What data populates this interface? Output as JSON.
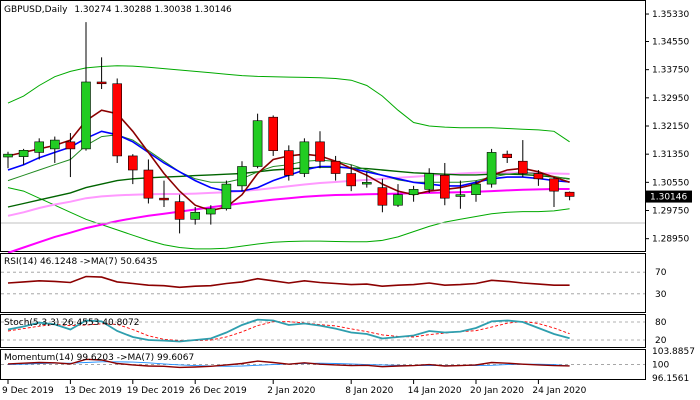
{
  "header": {
    "title": "GBPUSD,Daily",
    "ohlc": "1.30274 1.30288 1.30038 1.30146"
  },
  "price_axis": {
    "ticks": [
      "1.35330",
      "1.34550",
      "1.33750",
      "1.32950",
      "1.32150",
      "1.31350",
      "1.30550",
      "1.29750",
      "1.28950"
    ],
    "current_price": "1.30146"
  },
  "x_axis": {
    "labels": [
      "9 Dec 2019",
      "13 Dec 2019",
      "19 Dec 2019",
      "26 Dec 2019",
      "2 Jan 2020",
      "8 Jan 2020",
      "14 Jan 2020",
      "20 Jan 2020",
      "24 Jan 2020"
    ]
  },
  "indicators": {
    "rsi": {
      "label": "RSI(14) 46.1248 ->MA(7) 50.6435",
      "ticks": [
        "70",
        "30"
      ]
    },
    "stoch": {
      "label": "Stoch(5,3,3) 26.4553 40.8072",
      "ticks": [
        "80",
        "20"
      ]
    },
    "momentum": {
      "label": "Momentum(14) 99.6203 ->MA(7) 99.6067",
      "ticks": [
        "103.8857",
        "100",
        "96.1561"
      ]
    }
  },
  "colors": {
    "bull": "#22cc22",
    "bear": "#ff0000",
    "ma_fast": "#0000ff",
    "ma_dark_red": "#8b0000",
    "ma_green": "#006400",
    "ma_magenta": "#ff00ff",
    "ma_pink": "#ff99ff",
    "bollinger": "#00aa00",
    "rsi_line": "#8b0000",
    "stoch_line": "#2e9eae",
    "momentum_line": "#8b0000"
  },
  "chart_data": {
    "type": "candlestick",
    "symbol": "GBPUSD",
    "timeframe": "Daily",
    "ylim": [
      1.286,
      1.357
    ],
    "candles": [
      {
        "o": 1.3127,
        "h": 1.3142,
        "l": 1.3095,
        "c": 1.3135
      },
      {
        "o": 1.3128,
        "h": 1.315,
        "l": 1.3105,
        "c": 1.3146
      },
      {
        "o": 1.314,
        "h": 1.318,
        "l": 1.312,
        "c": 1.317
      },
      {
        "o": 1.315,
        "h": 1.3185,
        "l": 1.311,
        "c": 1.3175
      },
      {
        "o": 1.317,
        "h": 1.3195,
        "l": 1.307,
        "c": 1.315
      },
      {
        "o": 1.315,
        "h": 1.351,
        "l": 1.3145,
        "c": 1.334
      },
      {
        "o": 1.334,
        "h": 1.341,
        "l": 1.332,
        "c": 1.3335
      },
      {
        "o": 1.3335,
        "h": 1.335,
        "l": 1.311,
        "c": 1.313
      },
      {
        "o": 1.313,
        "h": 1.3135,
        "l": 1.305,
        "c": 1.309
      },
      {
        "o": 1.309,
        "h": 1.312,
        "l": 1.2995,
        "c": 1.301
      },
      {
        "o": 1.301,
        "h": 1.306,
        "l": 1.2985,
        "c": 1.3005
      },
      {
        "o": 1.3,
        "h": 1.302,
        "l": 1.291,
        "c": 1.295
      },
      {
        "o": 1.295,
        "h": 1.2985,
        "l": 1.2935,
        "c": 1.297
      },
      {
        "o": 1.2965,
        "h": 1.299,
        "l": 1.2935,
        "c": 1.298
      },
      {
        "o": 1.298,
        "h": 1.306,
        "l": 1.2975,
        "c": 1.305
      },
      {
        "o": 1.3045,
        "h": 1.3115,
        "l": 1.303,
        "c": 1.31
      },
      {
        "o": 1.31,
        "h": 1.325,
        "l": 1.3095,
        "c": 1.323
      },
      {
        "o": 1.324,
        "h": 1.3245,
        "l": 1.313,
        "c": 1.3145
      },
      {
        "o": 1.3145,
        "h": 1.316,
        "l": 1.306,
        "c": 1.3075
      },
      {
        "o": 1.308,
        "h": 1.318,
        "l": 1.307,
        "c": 1.317
      },
      {
        "o": 1.317,
        "h": 1.32,
        "l": 1.3095,
        "c": 1.3115
      },
      {
        "o": 1.3115,
        "h": 1.313,
        "l": 1.306,
        "c": 1.308
      },
      {
        "o": 1.308,
        "h": 1.3105,
        "l": 1.303,
        "c": 1.3045
      },
      {
        "o": 1.305,
        "h": 1.3085,
        "l": 1.304,
        "c": 1.3055
      },
      {
        "o": 1.304,
        "h": 1.3065,
        "l": 1.297,
        "c": 1.299
      },
      {
        "o": 1.299,
        "h": 1.305,
        "l": 1.2985,
        "c": 1.302
      },
      {
        "o": 1.302,
        "h": 1.3045,
        "l": 1.3,
        "c": 1.3035
      },
      {
        "o": 1.3035,
        "h": 1.3095,
        "l": 1.3025,
        "c": 1.308
      },
      {
        "o": 1.3075,
        "h": 1.311,
        "l": 1.299,
        "c": 1.301
      },
      {
        "o": 1.3015,
        "h": 1.306,
        "l": 1.298,
        "c": 1.302
      },
      {
        "o": 1.302,
        "h": 1.306,
        "l": 1.3,
        "c": 1.305
      },
      {
        "o": 1.305,
        "h": 1.315,
        "l": 1.304,
        "c": 1.314
      },
      {
        "o": 1.3135,
        "h": 1.3145,
        "l": 1.311,
        "c": 1.3125
      },
      {
        "o": 1.3115,
        "h": 1.3175,
        "l": 1.307,
        "c": 1.308
      },
      {
        "o": 1.308,
        "h": 1.309,
        "l": 1.3045,
        "c": 1.3065
      },
      {
        "o": 1.3065,
        "h": 1.307,
        "l": 1.2985,
        "c": 1.303
      },
      {
        "o": 1.3027,
        "h": 1.3029,
        "l": 1.3004,
        "c": 1.3015
      }
    ],
    "overlays": {
      "ma_fast": [
        1.309,
        1.3105,
        1.3125,
        1.314,
        1.3155,
        1.318,
        1.32,
        1.319,
        1.317,
        1.314,
        1.311,
        1.3085,
        1.306,
        1.304,
        1.303,
        1.303,
        1.304,
        1.306,
        1.3075,
        1.309,
        1.31,
        1.31,
        1.3095,
        1.3085,
        1.3075,
        1.3065,
        1.3055,
        1.305,
        1.3045,
        1.3045,
        1.3055,
        1.3065,
        1.307,
        1.307,
        1.3066,
        1.306,
        1.3056
      ],
      "ma_dark_red": [
        1.313,
        1.314,
        1.315,
        1.316,
        1.3175,
        1.323,
        1.326,
        1.325,
        1.32,
        1.314,
        1.308,
        1.303,
        1.299,
        1.2975,
        1.2985,
        1.302,
        1.308,
        1.312,
        1.313,
        1.3135,
        1.313,
        1.3115,
        1.3095,
        1.3075,
        1.305,
        1.303,
        1.302,
        1.303,
        1.3035,
        1.304,
        1.305,
        1.3075,
        1.309,
        1.3095,
        1.3085,
        1.307,
        1.3055
      ],
      "ma_green": [
        1.306,
        1.3075,
        1.309,
        1.3105,
        1.312,
        1.316,
        1.3185,
        1.319,
        1.3175,
        1.3145,
        1.3115,
        1.3085,
        1.3065,
        1.3055,
        1.3055,
        1.3065,
        1.3085,
        1.31,
        1.3105,
        1.3115,
        1.3118,
        1.3115,
        1.3105,
        1.309,
        1.3075,
        1.3062,
        1.3055,
        1.3055,
        1.3055,
        1.3055,
        1.306,
        1.307,
        1.3078,
        1.3082,
        1.308,
        1.3072,
        1.3064
      ],
      "ma_long_green": [
        1.2985,
        1.2995,
        1.3005,
        1.3015,
        1.3025,
        1.304,
        1.305,
        1.306,
        1.3065,
        1.3068,
        1.307,
        1.3072,
        1.3074,
        1.3076,
        1.3078,
        1.308,
        1.3085,
        1.309,
        1.3093,
        1.3096,
        1.3098,
        1.3098,
        1.3096,
        1.3094,
        1.309,
        1.3086,
        1.3082,
        1.308,
        1.3078,
        1.3076,
        1.3076,
        1.3078,
        1.3078,
        1.3077,
        1.3074,
        1.307,
        1.3065
      ],
      "ma_magenta": [
        1.2855,
        1.287,
        1.2885,
        1.29,
        1.2912,
        1.2925,
        1.2935,
        1.2945,
        1.2953,
        1.296,
        1.2966,
        1.2972,
        1.2978,
        1.2984,
        1.299,
        1.2996,
        1.3001,
        1.3006,
        1.301,
        1.3014,
        1.3017,
        1.3019,
        1.302,
        1.3021,
        1.3022,
        1.3023,
        1.3024,
        1.3025,
        1.3026,
        1.3027,
        1.3028,
        1.303,
        1.3032,
        1.3034,
        1.3035,
        1.3036,
        1.3036
      ],
      "ma_pink": [
        1.296,
        1.297,
        1.2982,
        1.2992,
        1.3,
        1.301,
        1.3015,
        1.3018,
        1.302,
        1.3021,
        1.3022,
        1.3022,
        1.3023,
        1.3025,
        1.3027,
        1.303,
        1.3034,
        1.3039,
        1.3044,
        1.3049,
        1.3053,
        1.3056,
        1.3059,
        1.3062,
        1.3065,
        1.3068,
        1.3071,
        1.3074,
        1.3077,
        1.308,
        1.3082,
        1.3083,
        1.3083,
        1.3082,
        1.3081,
        1.308,
        1.3079
      ],
      "bb_upper": [
        1.328,
        1.33,
        1.333,
        1.3355,
        1.337,
        1.338,
        1.3384,
        1.3386,
        1.3385,
        1.3382,
        1.3378,
        1.3374,
        1.337,
        1.3366,
        1.3362,
        1.3358,
        1.3356,
        1.3355,
        1.3354,
        1.3353,
        1.3352,
        1.335,
        1.3345,
        1.333,
        1.33,
        1.326,
        1.3225,
        1.3215,
        1.3212,
        1.321,
        1.321,
        1.321,
        1.3208,
        1.3206,
        1.3204,
        1.32,
        1.317
      ],
      "bb_lower": [
        1.304,
        1.303,
        1.301,
        1.299,
        1.297,
        1.295,
        1.2935,
        1.292,
        1.2905,
        1.289,
        1.2878,
        1.287,
        1.2866,
        1.2866,
        1.2868,
        1.2874,
        1.288,
        1.2885,
        1.2887,
        1.2888,
        1.2888,
        1.2887,
        1.2886,
        1.2886,
        1.289,
        1.29,
        1.2915,
        1.293,
        1.2942,
        1.295,
        1.2958,
        1.2966,
        1.297,
        1.2972,
        1.2972,
        1.2974,
        1.298
      ]
    },
    "rsi": [
      50,
      52,
      54,
      53,
      51,
      62,
      61,
      52,
      49,
      46,
      45,
      42,
      44,
      45,
      49,
      52,
      58,
      54,
      50,
      54,
      51,
      49,
      47,
      48,
      44,
      46,
      47,
      50,
      46,
      47,
      49,
      55,
      53,
      50,
      48,
      46,
      46
    ],
    "rsi_levels": [
      70,
      30
    ],
    "stoch_k": [
      55,
      65,
      78,
      72,
      55,
      85,
      82,
      50,
      30,
      20,
      18,
      15,
      20,
      25,
      45,
      70,
      88,
      85,
      70,
      75,
      68,
      58,
      45,
      40,
      25,
      30,
      35,
      50,
      45,
      48,
      60,
      82,
      85,
      80,
      60,
      40,
      26
    ],
    "stoch_d": [
      50,
      58,
      66,
      72,
      68,
      70,
      74,
      72,
      55,
      34,
      22,
      18,
      18,
      20,
      30,
      47,
      68,
      81,
      81,
      77,
      71,
      67,
      57,
      48,
      37,
      32,
      30,
      38,
      43,
      48,
      51,
      63,
      76,
      82,
      75,
      60,
      41
    ],
    "stoch_levels": [
      80,
      20
    ],
    "momentum": [
      100.2,
      100.4,
      100.6,
      100.5,
      100.2,
      101.5,
      101.3,
      100.3,
      99.9,
      99.6,
      99.5,
      99.2,
      99.3,
      99.5,
      99.9,
      100.3,
      101.0,
      100.6,
      100.1,
      100.5,
      100.1,
      99.9,
      99.7,
      99.8,
      99.4,
      99.6,
      99.7,
      100.0,
      99.6,
      99.7,
      99.9,
      100.6,
      100.4,
      100.1,
      99.9,
      99.7,
      99.62
    ],
    "momentum_ma": [
      100.0,
      100.1,
      100.3,
      100.4,
      100.4,
      100.6,
      100.8,
      100.8,
      100.7,
      100.5,
      100.2,
      99.9,
      99.7,
      99.6,
      99.5,
      99.6,
      99.8,
      100.0,
      100.2,
      100.3,
      100.4,
      100.3,
      100.2,
      100.0,
      99.9,
      99.8,
      99.7,
      99.7,
      99.7,
      99.7,
      99.7,
      99.8,
      100.0,
      100.1,
      100.1,
      100.0,
      99.61
    ],
    "momentum_ylim": [
      96.1561,
      103.8857
    ]
  }
}
